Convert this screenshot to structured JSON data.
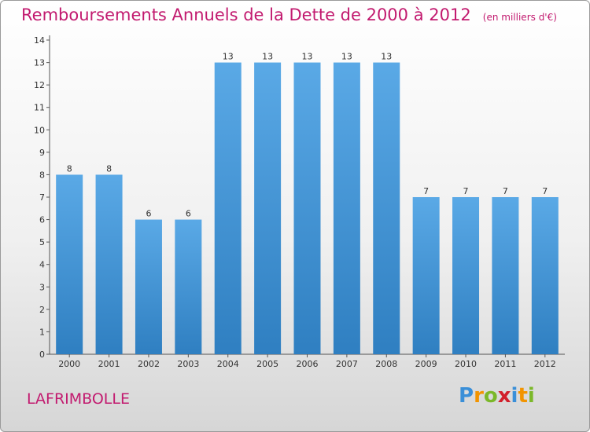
{
  "header": {
    "title": "Remboursements Annuels de la Dette de 2000 à 2012",
    "subtitle": "(en milliers d'€)"
  },
  "footer": {
    "commune": "LAFRIMBOLLE",
    "logo_letters": [
      "P",
      "r",
      "o",
      "x",
      "i",
      "t",
      "i"
    ],
    "logo_colors": [
      "#3a8fd8",
      "#f29400",
      "#7bb829",
      "#d21f2a",
      "#3a8fd8",
      "#f29400",
      "#7bb829"
    ]
  },
  "colors": {
    "title": "#c21a6f",
    "bar_top": "#5aa9e6",
    "bar_bottom": "#2f7fc1"
  },
  "chart_data": {
    "type": "bar",
    "categories": [
      "2000",
      "2001",
      "2002",
      "2003",
      "2004",
      "2005",
      "2006",
      "2007",
      "2008",
      "2009",
      "2010",
      "2011",
      "2012"
    ],
    "values": [
      8,
      8,
      6,
      6,
      13,
      13,
      13,
      13,
      13,
      7,
      7,
      7,
      7
    ],
    "data_labels": [
      "8",
      "8",
      "6",
      "6",
      "13",
      "13",
      "13",
      "13",
      "13",
      "7",
      "7",
      "7",
      "7"
    ],
    "yticks": [
      0,
      1,
      2,
      3,
      4,
      5,
      6,
      7,
      8,
      9,
      10,
      11,
      12,
      13,
      14
    ],
    "ylim": [
      0,
      14
    ],
    "title": "Remboursements Annuels de la Dette de 2000 à 2012",
    "xlabel": "",
    "ylabel": "",
    "grid": false
  }
}
